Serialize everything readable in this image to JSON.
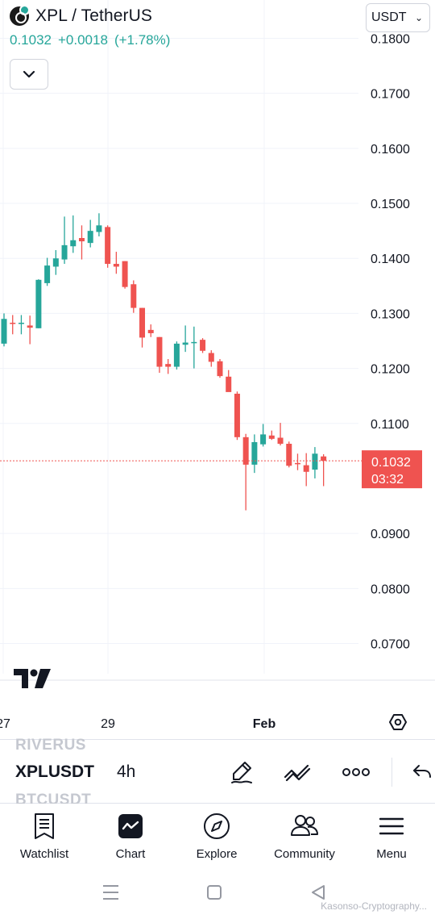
{
  "header": {
    "symbol_title": "XPL / TetherUS",
    "price": "0.1032",
    "change": "+0.0018",
    "change_pct": "(+1.78%)",
    "up_color": "#26a69a",
    "down_color": "#ef5350"
  },
  "currency_selector": {
    "value": "USDT"
  },
  "price_axis": {
    "labels": [
      "0.1800",
      "0.1700",
      "0.1600",
      "0.1500",
      "0.1400",
      "0.1300",
      "0.1200",
      "0.1100",
      "0.0900",
      "0.0800",
      "0.0700"
    ],
    "current_price_label": "0.1032",
    "countdown_label": "03:32"
  },
  "time_axis": {
    "labels": [
      "27",
      "29",
      "Feb"
    ]
  },
  "chart_data": {
    "type": "candlestick",
    "interval": "4h",
    "ylim": [
      0.0645,
      0.1855
    ],
    "current_price": 0.1032,
    "candles": [
      {
        "o": 0.1245,
        "h": 0.13,
        "l": 0.124,
        "c": 0.129
      },
      {
        "o": 0.1283,
        "h": 0.1297,
        "l": 0.1262,
        "c": 0.1281
      },
      {
        "o": 0.1281,
        "h": 0.1297,
        "l": 0.1262,
        "c": 0.1283
      },
      {
        "o": 0.1278,
        "h": 0.1296,
        "l": 0.1244,
        "c": 0.1274
      },
      {
        "o": 0.1273,
        "h": 0.1362,
        "l": 0.1273,
        "c": 0.1361
      },
      {
        "o": 0.1355,
        "h": 0.1401,
        "l": 0.135,
        "c": 0.1387
      },
      {
        "o": 0.1385,
        "h": 0.1415,
        "l": 0.137,
        "c": 0.14
      },
      {
        "o": 0.1398,
        "h": 0.1476,
        "l": 0.139,
        "c": 0.1424
      },
      {
        "o": 0.1422,
        "h": 0.1478,
        "l": 0.141,
        "c": 0.1433
      },
      {
        "o": 0.1437,
        "h": 0.146,
        "l": 0.1398,
        "c": 0.1431
      },
      {
        "o": 0.1428,
        "h": 0.147,
        "l": 0.142,
        "c": 0.145
      },
      {
        "o": 0.1448,
        "h": 0.1482,
        "l": 0.144,
        "c": 0.146
      },
      {
        "o": 0.1457,
        "h": 0.146,
        "l": 0.1383,
        "c": 0.139
      },
      {
        "o": 0.139,
        "h": 0.1412,
        "l": 0.1372,
        "c": 0.1385
      },
      {
        "o": 0.1395,
        "h": 0.1395,
        "l": 0.1345,
        "c": 0.1348
      },
      {
        "o": 0.1353,
        "h": 0.136,
        "l": 0.1301,
        "c": 0.131
      },
      {
        "o": 0.131,
        "h": 0.131,
        "l": 0.1238,
        "c": 0.1256
      },
      {
        "o": 0.127,
        "h": 0.128,
        "l": 0.1257,
        "c": 0.1264
      },
      {
        "o": 0.1257,
        "h": 0.1257,
        "l": 0.1192,
        "c": 0.1203
      },
      {
        "o": 0.1208,
        "h": 0.1217,
        "l": 0.119,
        "c": 0.1203
      },
      {
        "o": 0.1203,
        "h": 0.1249,
        "l": 0.1198,
        "c": 0.1245
      },
      {
        "o": 0.1243,
        "h": 0.1278,
        "l": 0.123,
        "c": 0.1247
      },
      {
        "o": 0.1247,
        "h": 0.1276,
        "l": 0.12,
        "c": 0.1248
      },
      {
        "o": 0.1252,
        "h": 0.1255,
        "l": 0.1228,
        "c": 0.1232
      },
      {
        "o": 0.1228,
        "h": 0.1233,
        "l": 0.1203,
        "c": 0.1212
      },
      {
        "o": 0.1213,
        "h": 0.1217,
        "l": 0.1183,
        "c": 0.1186
      },
      {
        "o": 0.1185,
        "h": 0.1197,
        "l": 0.1158,
        "c": 0.1157
      },
      {
        "o": 0.1154,
        "h": 0.1158,
        "l": 0.107,
        "c": 0.1075
      },
      {
        "o": 0.1075,
        "h": 0.1081,
        "l": 0.0942,
        "c": 0.1025
      },
      {
        "o": 0.1025,
        "h": 0.108,
        "l": 0.101,
        "c": 0.1066
      },
      {
        "o": 0.1062,
        "h": 0.1099,
        "l": 0.1058,
        "c": 0.108
      },
      {
        "o": 0.1078,
        "h": 0.1087,
        "l": 0.107,
        "c": 0.1072
      },
      {
        "o": 0.1074,
        "h": 0.1101,
        "l": 0.106,
        "c": 0.1063
      },
      {
        "o": 0.1063,
        "h": 0.1067,
        "l": 0.102,
        "c": 0.1023
      },
      {
        "o": 0.1028,
        "h": 0.1045,
        "l": 0.1015,
        "c": 0.1026
      },
      {
        "o": 0.1024,
        "h": 0.1046,
        "l": 0.0986,
        "c": 0.1012
      },
      {
        "o": 0.1016,
        "h": 0.1057,
        "l": 0.1,
        "c": 0.1045
      },
      {
        "o": 0.104,
        "h": 0.1044,
        "l": 0.0986,
        "c": 0.1032
      }
    ]
  },
  "symbol_bar": {
    "prev_symbol": "RIVERUS",
    "current_symbol": "XPLUSDT",
    "next_symbol": "BTCUSDT",
    "interval": "4h"
  },
  "bottom_nav": {
    "items": [
      {
        "label": "Watchlist",
        "icon": "watchlist-icon"
      },
      {
        "label": "Chart",
        "icon": "chart-icon"
      },
      {
        "label": "Explore",
        "icon": "compass-icon"
      },
      {
        "label": "Community",
        "icon": "community-icon"
      },
      {
        "label": "Menu",
        "icon": "menu-icon"
      }
    ]
  },
  "watermark": "Kasonso-Cryptography..."
}
